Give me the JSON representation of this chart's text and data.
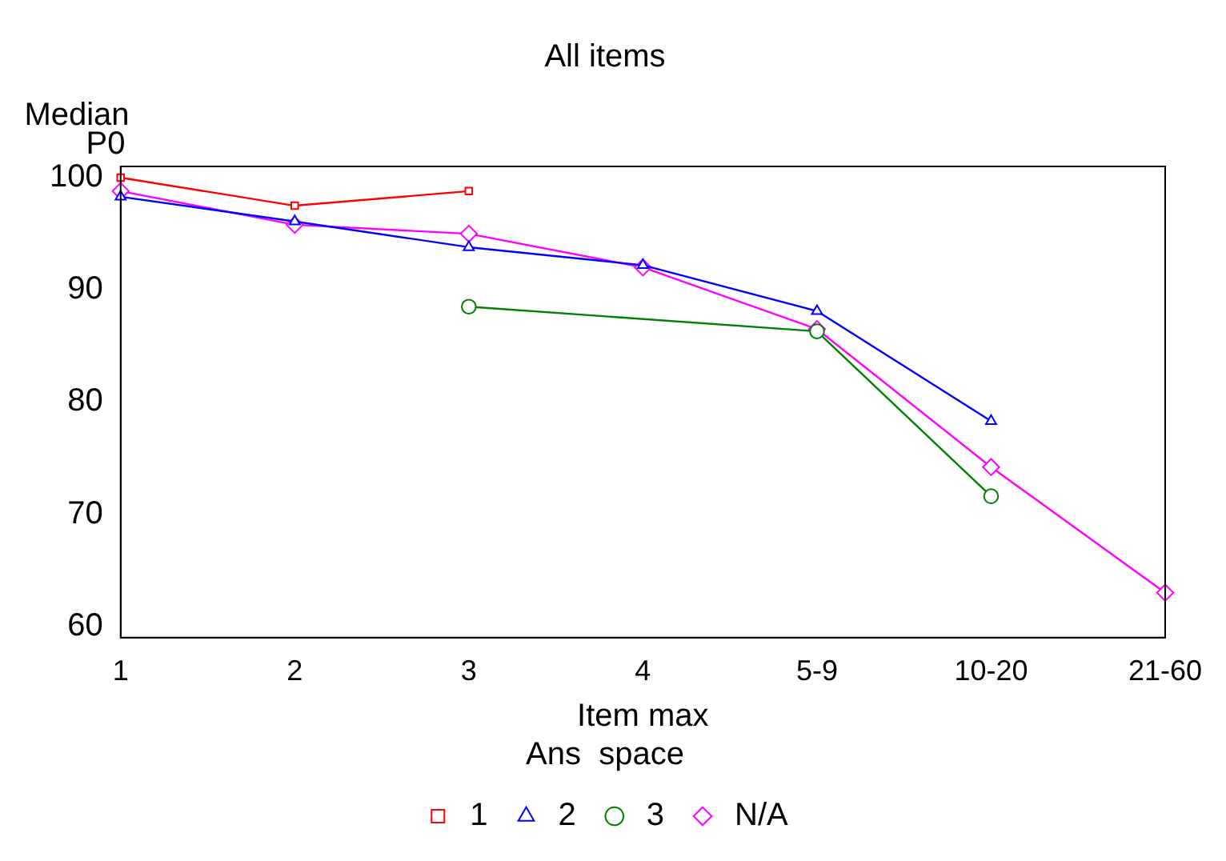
{
  "chart_data": {
    "type": "line",
    "title": "All items",
    "xlabel": "Item max",
    "ylabel": "Median P0",
    "legend_title": "Ans  space",
    "legend": "bottom",
    "grid": false,
    "categories": [
      "1",
      "2",
      "3",
      "4",
      "5-9",
      "10-20",
      "21-60"
    ],
    "ylim": [
      59,
      101
    ],
    "yticks": [
      60,
      70,
      80,
      90,
      100
    ],
    "series": [
      {
        "name": "1",
        "color": "#ff0000",
        "marker": "square",
        "values": [
          100,
          97.5,
          98.8,
          null,
          null,
          null,
          null
        ]
      },
      {
        "name": "2",
        "color": "#0000ff",
        "marker": "triangle",
        "values": [
          98.3,
          96.1,
          93.8,
          92.2,
          88.1,
          78.3,
          null
        ]
      },
      {
        "name": "3",
        "color": "#008000",
        "marker": "circle",
        "values": [
          null,
          null,
          88.5,
          null,
          86.3,
          71.6,
          null
        ]
      },
      {
        "name": "N/A",
        "color": "#ff00ff",
        "marker": "diamond",
        "values": [
          98.8,
          95.8,
          95.0,
          92.0,
          86.5,
          74.2,
          63.0
        ]
      }
    ]
  }
}
